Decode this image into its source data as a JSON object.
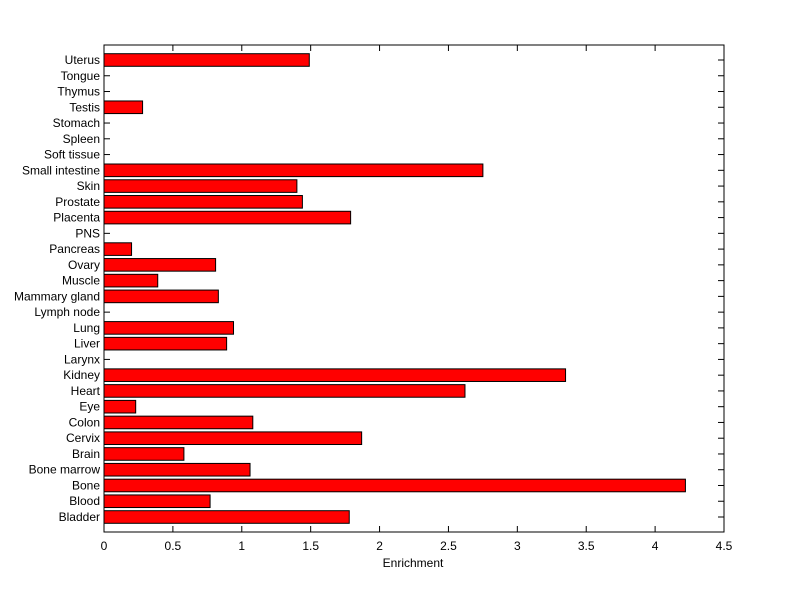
{
  "chart_data": {
    "type": "bar",
    "orientation": "horizontal",
    "categories": [
      "Uterus",
      "Tongue",
      "Thymus",
      "Testis",
      "Stomach",
      "Spleen",
      "Soft tissue",
      "Small intestine",
      "Skin",
      "Prostate",
      "Placenta",
      "PNS",
      "Pancreas",
      "Ovary",
      "Muscle",
      "Mammary gland",
      "Lymph node",
      "Lung",
      "Liver",
      "Larynx",
      "Kidney",
      "Heart",
      "Eye",
      "Colon",
      "Cervix",
      "Brain",
      "Bone marrow",
      "Bone",
      "Blood",
      "Bladder"
    ],
    "values": [
      1.49,
      0,
      0,
      0.28,
      0,
      0,
      0,
      2.75,
      1.4,
      1.44,
      1.79,
      0,
      0.2,
      0.81,
      0.39,
      0.83,
      0,
      0.94,
      0.89,
      0,
      3.35,
      2.62,
      0.23,
      1.08,
      1.87,
      0.58,
      1.06,
      4.22,
      0.77,
      1.78
    ],
    "title": "",
    "xlabel": "Enrichment",
    "ylabel": "",
    "xlim": [
      0,
      4.5
    ],
    "xticks": [
      "0",
      "0.5",
      "1",
      "1.5",
      "2",
      "2.5",
      "3",
      "3.5",
      "4",
      "4.5"
    ],
    "grid": false,
    "bar_color": "#ff0000",
    "edge_color": "#000000"
  }
}
